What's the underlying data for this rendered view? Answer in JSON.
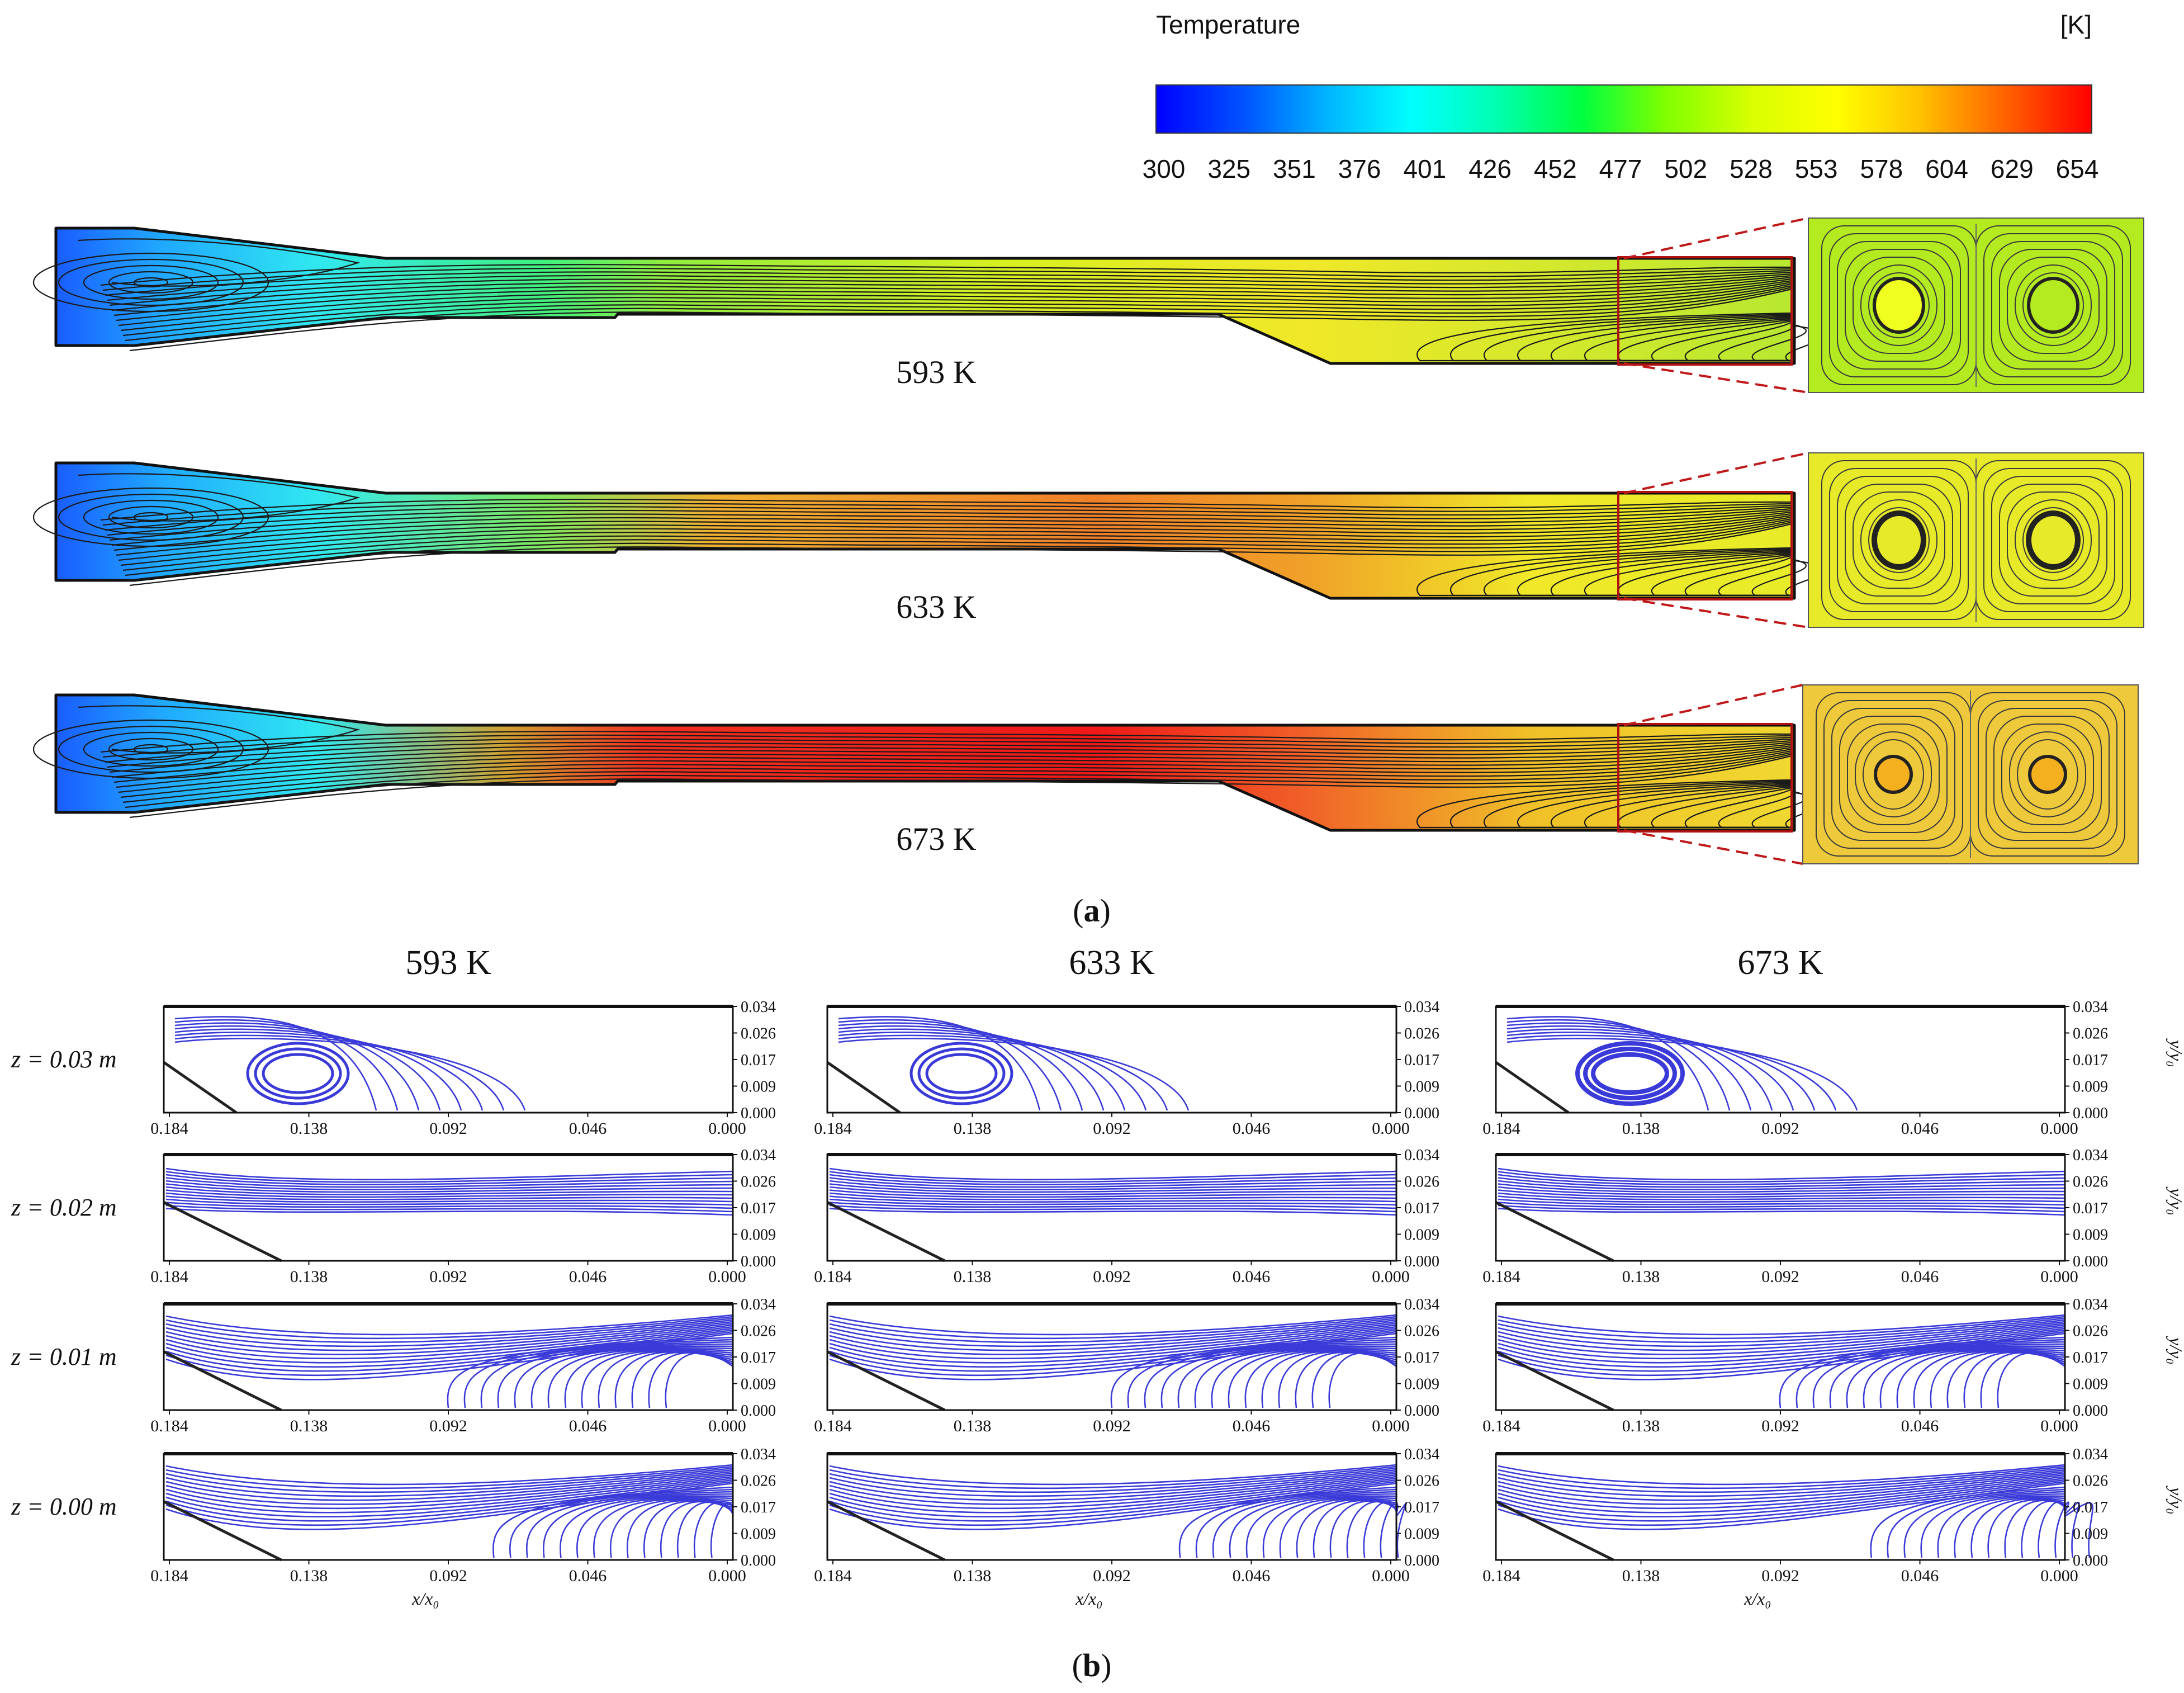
{
  "colorbar": {
    "title": "Temperature",
    "unit": "[K]",
    "ticks": [
      "300",
      "325",
      "351",
      "376",
      "401",
      "426",
      "452",
      "477",
      "502",
      "528",
      "553",
      "578",
      "604",
      "629",
      "654"
    ],
    "stops": [
      "#0000ff",
      "#0050ff",
      "#00b4ff",
      "#00ffff",
      "#00ffb0",
      "#00ff40",
      "#80ff00",
      "#d8ff00",
      "#ffff00",
      "#ffc000",
      "#ff6000",
      "#ff0000"
    ]
  },
  "panel_a": {
    "label_open": "(",
    "label": "a",
    "label_close": ")",
    "cases": [
      {
        "label": "593 K",
        "temperature": 593,
        "inset_color": "#b4ea20"
      },
      {
        "label": "633 K",
        "temperature": 633,
        "inset_color": "#e6ea28"
      },
      {
        "label": "673 K",
        "temperature": 673,
        "inset_color": "#efc93c"
      }
    ]
  },
  "panel_b": {
    "label_open": "(",
    "label": "b",
    "label_close": ")",
    "column_titles": [
      "593 K",
      "633 K",
      "673 K"
    ],
    "row_labels": [
      "z = 0.03 m",
      "z = 0.02 m",
      "z = 0.01 m",
      "z = 0.00 m"
    ],
    "x_ticks": [
      "0.184",
      "0.138",
      "0.092",
      "0.046",
      "0.000"
    ],
    "y_ticks": [
      "0.034",
      "0.026",
      "0.017",
      "0.009",
      "0.000"
    ],
    "x_label": "x/x₀",
    "y_label": "y/y₀",
    "line_color": "#3a3ad8"
  }
}
